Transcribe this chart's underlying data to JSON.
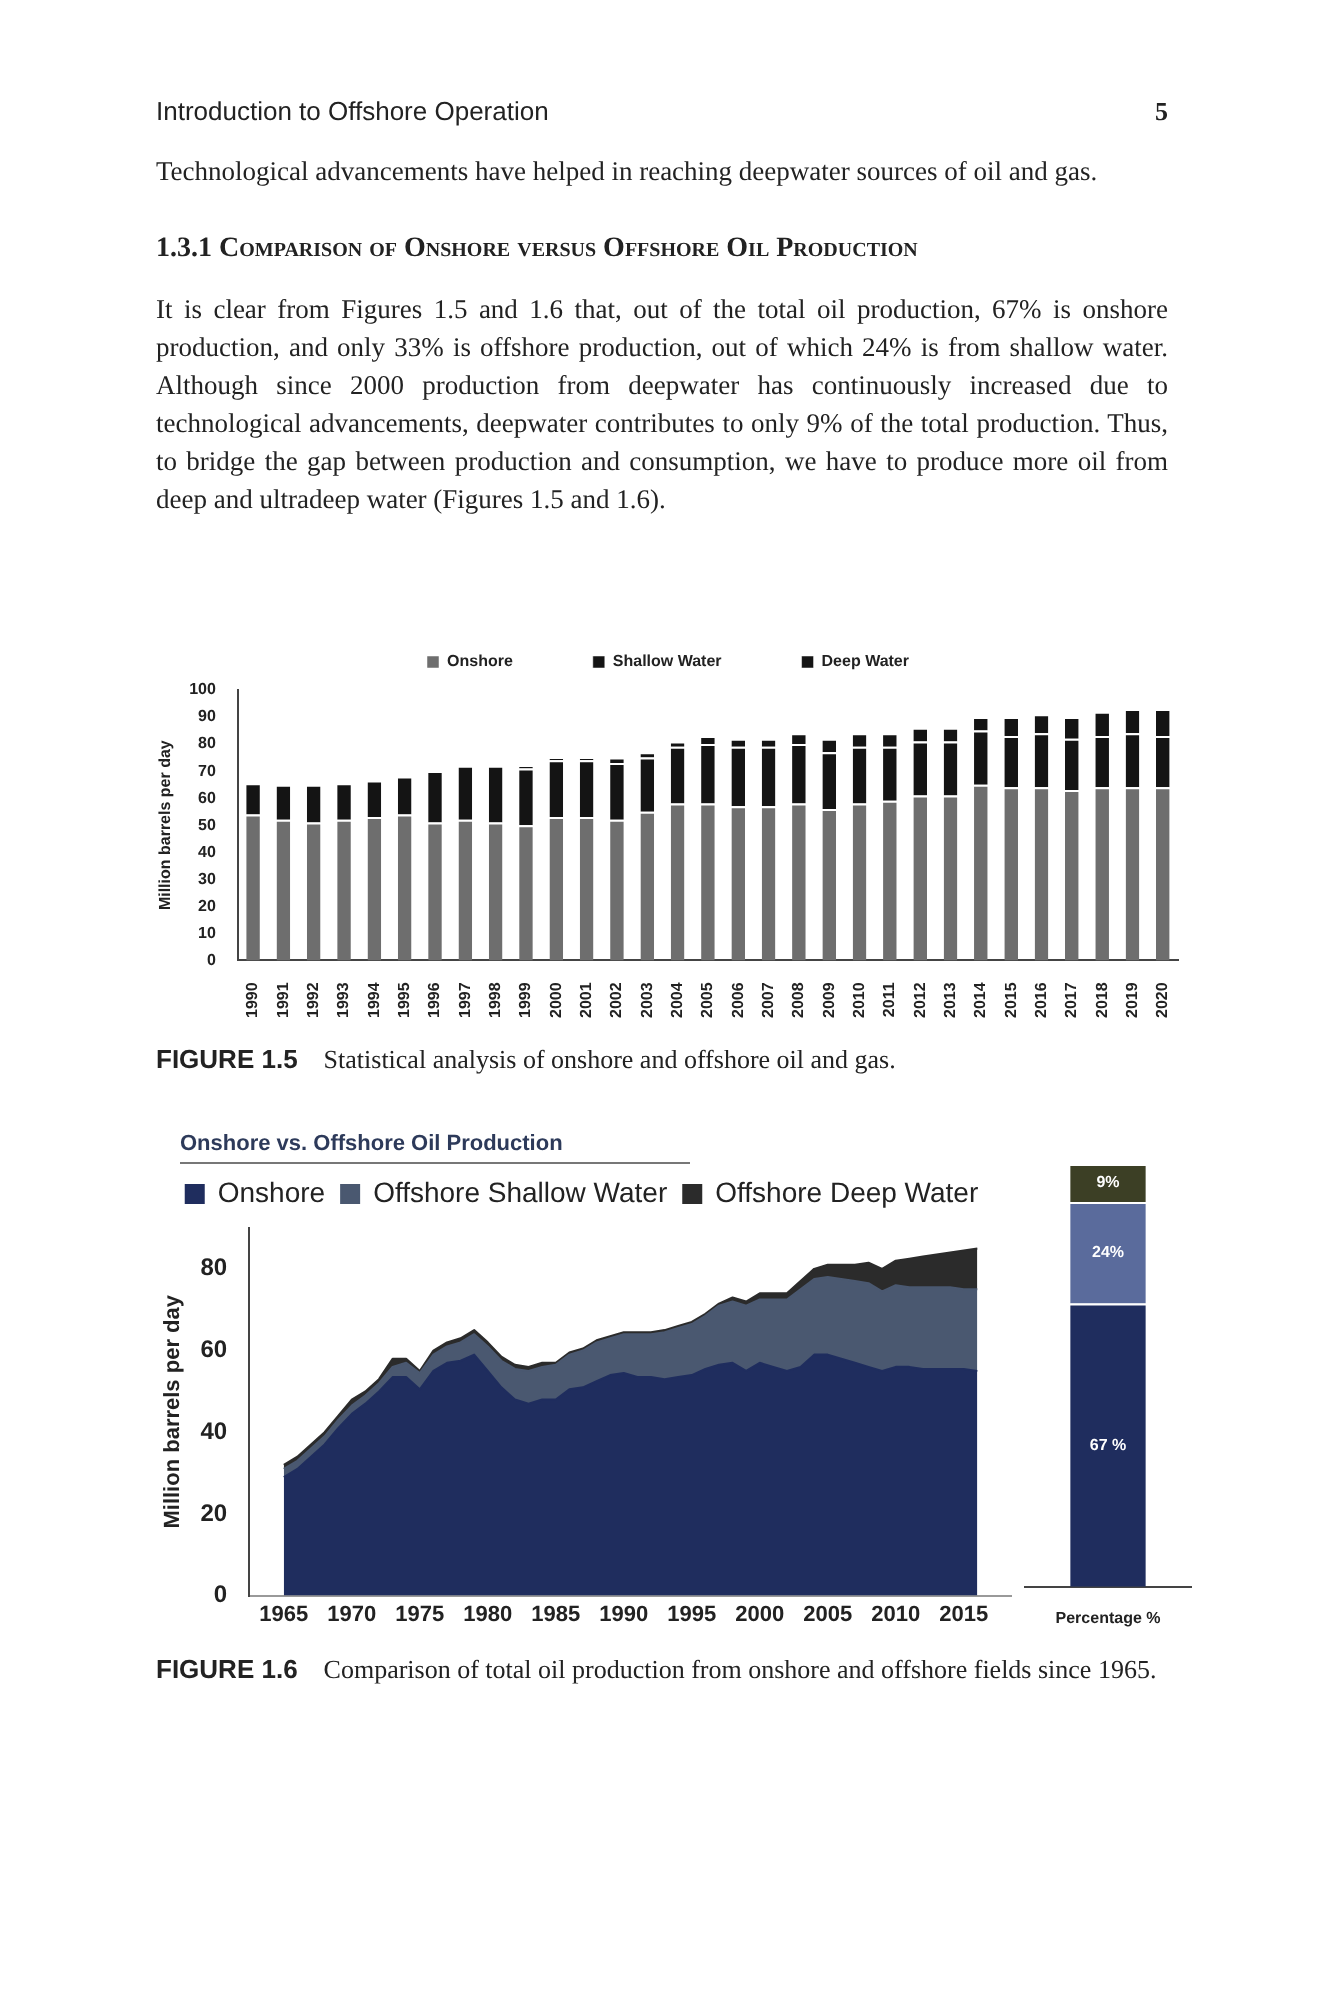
{
  "chart_data": [
    {
      "type": "bar",
      "stacked": true,
      "ylabel": "Million barrels per day",
      "legend": "top",
      "grid": false,
      "annotations": [
        "Introduction to Offshore Operation",
        "5",
        "Technological advancements have helped in reaching deepwater sources of oil and gas.",
        "1.3.1 Comparison of Onshore versus Offshore Oil Production",
        "It is clear from Figures 1.5 and 1.6 that, out of the total oil production, 67% is onshore production, and only 33% is offshore production, out of which 24% is from shallow water. Although since 2000 production from deepwater has continuously increased due to technological advancements, deepwater contributes to only 9% of the total production. Thus, to bridge the gap between production and consumption, we have to produce more oil from deep and ultradeep water (Figures 1.5 and 1.6).",
        "FIGURE 1.5 Statistical analysis of onshore and offshore oil and gas."
      ],
      "categories": [
        "1990",
        "1991",
        "1992",
        "1993",
        "1994",
        "1995",
        "1996",
        "1997",
        "1998",
        "1999",
        "2000",
        "2001",
        "2002",
        "2003",
        "2004",
        "2005",
        "2006",
        "2007",
        "2008",
        "2009",
        "2010",
        "2011",
        "2012",
        "2013",
        "2014",
        "2015",
        "2016",
        "2017",
        "2018",
        "2019",
        "2020"
      ],
      "ylim": [
        0,
        100
      ],
      "yticks": [
        0,
        10,
        20,
        30,
        40,
        50,
        60,
        70,
        80,
        90,
        100
      ],
      "series": [
        {
          "name": "Onshore",
          "color": "#6e6e6e",
          "values": [
            54,
            52,
            51,
            52,
            53,
            54,
            51,
            52,
            51,
            50,
            53,
            53,
            52,
            55,
            58,
            58,
            57,
            57,
            58,
            56,
            58,
            59,
            61,
            61,
            65,
            64,
            64,
            63,
            64,
            64,
            64
          ]
        },
        {
          "name": "Shallow Water",
          "color": "#141414",
          "values": [
            11.5,
            13,
            14,
            13.5,
            13.5,
            14,
            19,
            20,
            21,
            21,
            21,
            21,
            21,
            20,
            21,
            22,
            22,
            22,
            22,
            21,
            21,
            20,
            20,
            20,
            20,
            19,
            20,
            19,
            19,
            20,
            19
          ]
        },
        {
          "name": "Deep Water",
          "color": "#141414",
          "values": [
            0,
            0,
            0,
            0,
            0,
            0,
            0,
            0,
            0,
            1,
            1,
            1,
            2,
            2,
            2,
            3,
            3,
            3,
            4,
            5,
            5,
            5,
            5,
            5,
            5,
            7,
            7,
            8,
            9,
            9,
            10
          ]
        }
      ]
    },
    {
      "type": "area",
      "stacked": true,
      "title": "Onshore vs. Offshore Oil Production",
      "ylabel": "Million barrels per day",
      "legend": "top",
      "grid": false,
      "annotations": [
        "FIGURE 1.6 Comparison of total oil production from onshore and offshore fields since 1965."
      ],
      "x": [
        1965,
        1966,
        1967,
        1968,
        1969,
        1970,
        1971,
        1972,
        1973,
        1974,
        1975,
        1976,
        1977,
        1978,
        1979,
        1980,
        1981,
        1982,
        1983,
        1984,
        1985,
        1986,
        1987,
        1988,
        1989,
        1990,
        1991,
        1992,
        1993,
        1994,
        1995,
        1996,
        1997,
        1998,
        1999,
        2000,
        2001,
        2002,
        2003,
        2004,
        2005,
        2006,
        2007,
        2008,
        2009,
        2010,
        2011,
        2012,
        2013,
        2014,
        2015,
        2016
      ],
      "xlim": [
        1965,
        2016
      ],
      "xticks": [
        1965,
        1970,
        1975,
        1980,
        1985,
        1990,
        1995,
        2000,
        2005,
        2010,
        2015
      ],
      "ylim": [
        0,
        90
      ],
      "yticks": [
        0,
        20,
        40,
        60,
        80
      ],
      "series": [
        {
          "name": "Onshore",
          "color": "#1f2d5e",
          "values": [
            29,
            31,
            34,
            37,
            41,
            44.5,
            47,
            50,
            53.5,
            53.5,
            50.5,
            55,
            57,
            57.5,
            59,
            55,
            51,
            48,
            47,
            48,
            48,
            50.5,
            51,
            52.5,
            54,
            54.5,
            53.5,
            53.5,
            53,
            53.5,
            54,
            55.5,
            56.5,
            57,
            55,
            57,
            56,
            55,
            56,
            59,
            59,
            58,
            57,
            56,
            55,
            56,
            56,
            55.5,
            55.5,
            55.5,
            55.5,
            55
          ]
        },
        {
          "name": "Offshore Shallow Water",
          "color": "#4a5870",
          "values": [
            2,
            2,
            2,
            2,
            2,
            2,
            2,
            2,
            2.5,
            3.5,
            4,
            4,
            4,
            4.5,
            5,
            6,
            6.5,
            7.5,
            8,
            8,
            8.5,
            8.5,
            9,
            9.5,
            9,
            9.5,
            10.5,
            10.5,
            11.5,
            12,
            12.5,
            13,
            14.5,
            15,
            16,
            15.5,
            16.5,
            17.5,
            19,
            18.5,
            19,
            19.5,
            20,
            20.5,
            19.5,
            20,
            19.5,
            20,
            20,
            20,
            19.5,
            20
          ]
        },
        {
          "name": "Offshore Deep Water",
          "color": "#2b2b2b",
          "values": [
            1,
            1,
            1,
            1,
            1,
            1.5,
            1,
            1,
            2,
            1,
            0.5,
            1,
            1,
            1,
            1,
            1,
            1,
            1,
            1,
            1,
            0.5,
            0.5,
            0.5,
            0.5,
            0.5,
            0.5,
            0.5,
            0.5,
            0.5,
            0.5,
            0.5,
            0.5,
            0.5,
            1,
            1,
            1.5,
            1.5,
            1.5,
            2,
            2.5,
            3,
            3.5,
            4,
            5,
            5.5,
            6,
            7,
            7.5,
            8,
            8.5,
            9.5,
            10
          ]
        }
      ]
    },
    {
      "type": "bar",
      "stacked": true,
      "categories": [
        "Percentage %"
      ],
      "ylim": [
        0,
        100
      ],
      "tick_labels": "x",
      "grid": false,
      "series": [
        {
          "color": "#1f2d5e",
          "values": [
            67
          ],
          "value_labels": [
            "67 %"
          ]
        },
        {
          "color": "#5a6b9c",
          "values": [
            24
          ],
          "value_labels": [
            "24%"
          ]
        },
        {
          "color": "#3c3f25",
          "values": [
            9
          ],
          "value_labels": [
            "9%"
          ]
        }
      ]
    }
  ]
}
